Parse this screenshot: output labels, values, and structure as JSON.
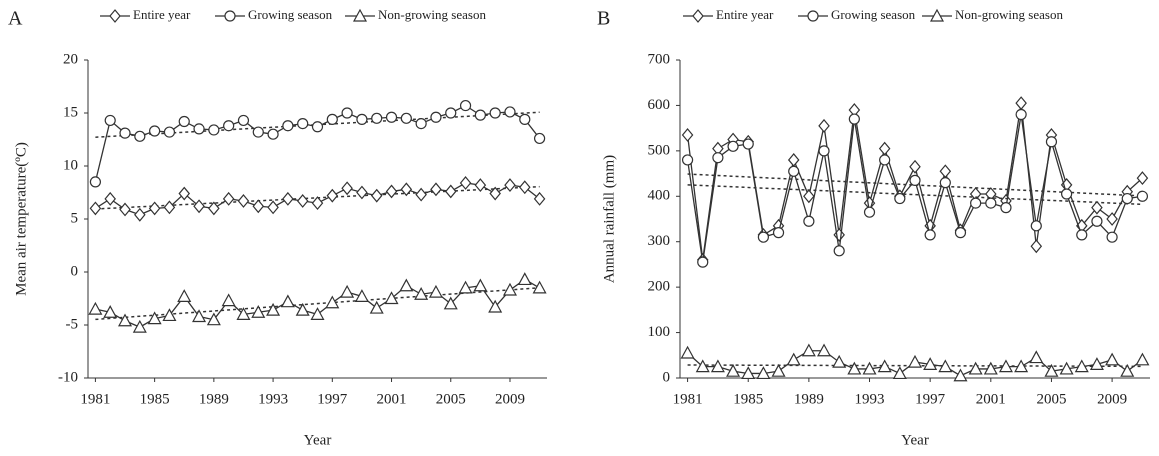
{
  "chart_data": [
    {
      "type": "line",
      "label": "A",
      "xlabel": "Year",
      "ylabel": "Mean air temperature(ºC)",
      "x": [
        1981,
        1982,
        1983,
        1984,
        1985,
        1986,
        1987,
        1988,
        1989,
        1990,
        1991,
        1992,
        1993,
        1994,
        1995,
        1996,
        1997,
        1998,
        1999,
        2000,
        2001,
        2002,
        2003,
        2004,
        2005,
        2006,
        2007,
        2008,
        2009,
        2010,
        2011
      ],
      "xlim": [
        1980.5,
        2011.5
      ],
      "xticks": [
        1981,
        1985,
        1989,
        1993,
        1997,
        2001,
        2005,
        2009
      ],
      "ylim": [
        -10,
        20
      ],
      "yticks": [
        -10,
        -5,
        0,
        5,
        10,
        15,
        20
      ],
      "trend_lines": true,
      "series": [
        {
          "name": "Entire year",
          "color": "#333333",
          "marker": "diamond",
          "values": [
            6.0,
            6.9,
            5.9,
            5.4,
            6.0,
            6.1,
            7.4,
            6.2,
            6.0,
            6.9,
            6.7,
            6.2,
            6.1,
            6.9,
            6.7,
            6.5,
            7.2,
            7.9,
            7.5,
            7.2,
            7.6,
            7.8,
            7.3,
            7.8,
            7.6,
            8.4,
            8.2,
            7.4,
            8.2,
            8.0,
            6.9
          ]
        },
        {
          "name": "Growing season",
          "color": "#333333",
          "marker": "circle",
          "values": [
            8.5,
            14.3,
            13.1,
            12.8,
            13.3,
            13.2,
            14.2,
            13.5,
            13.4,
            13.8,
            14.3,
            13.2,
            13.0,
            13.8,
            14.0,
            13.7,
            14.4,
            15.0,
            14.4,
            14.5,
            14.6,
            14.5,
            14.0,
            14.6,
            15.0,
            15.7,
            14.8,
            15.0,
            15.1,
            14.4,
            12.6
          ]
        },
        {
          "name": "Non-growing season",
          "color": "#333333",
          "marker": "triangle",
          "values": [
            -3.5,
            -3.8,
            -4.6,
            -5.2,
            -4.4,
            -4.1,
            -2.3,
            -4.2,
            -4.5,
            -2.7,
            -4.0,
            -3.8,
            -3.6,
            -2.8,
            -3.6,
            -4.0,
            -2.9,
            -1.9,
            -2.3,
            -3.4,
            -2.5,
            -1.3,
            -2.1,
            -1.9,
            -3.0,
            -1.5,
            -1.3,
            -3.3,
            -1.7,
            -0.7,
            -1.5
          ]
        }
      ]
    },
    {
      "type": "line",
      "label": "B",
      "xlabel": "Year",
      "ylabel": "Annual rainfall (mm)",
      "x": [
        1981,
        1982,
        1983,
        1984,
        1985,
        1986,
        1987,
        1988,
        1989,
        1990,
        1991,
        1992,
        1993,
        1994,
        1995,
        1996,
        1997,
        1998,
        1999,
        2000,
        2001,
        2002,
        2003,
        2004,
        2005,
        2006,
        2007,
        2008,
        2009,
        2010,
        2011
      ],
      "xlim": [
        1980.5,
        2011.5
      ],
      "xticks": [
        1981,
        1985,
        1989,
        1993,
        1997,
        2001,
        2005,
        2009
      ],
      "ylim": [
        0,
        700
      ],
      "yticks": [
        0,
        100,
        200,
        300,
        400,
        500,
        600,
        700
      ],
      "trend_lines": true,
      "series": [
        {
          "name": "Entire year",
          "color": "#333333",
          "marker": "diamond",
          "values": [
            535,
            260,
            505,
            525,
            520,
            315,
            335,
            480,
            400,
            555,
            315,
            590,
            385,
            505,
            400,
            465,
            335,
            455,
            325,
            405,
            405,
            390,
            605,
            290,
            535,
            425,
            335,
            375,
            350,
            410,
            440
          ]
        },
        {
          "name": "Growing season",
          "color": "#333333",
          "marker": "circle",
          "values": [
            480,
            255,
            485,
            510,
            515,
            310,
            320,
            455,
            345,
            500,
            280,
            570,
            365,
            480,
            395,
            435,
            315,
            430,
            320,
            385,
            385,
            375,
            580,
            335,
            520,
            405,
            315,
            345,
            310,
            395,
            400
          ]
        },
        {
          "name": "Non-growing season",
          "color": "#333333",
          "marker": "triangle",
          "values": [
            55,
            25,
            25,
            15,
            10,
            10,
            15,
            40,
            60,
            60,
            35,
            20,
            20,
            25,
            10,
            35,
            30,
            25,
            5,
            20,
            20,
            25,
            25,
            45,
            15,
            20,
            25,
            30,
            40,
            15,
            40
          ]
        }
      ]
    }
  ]
}
